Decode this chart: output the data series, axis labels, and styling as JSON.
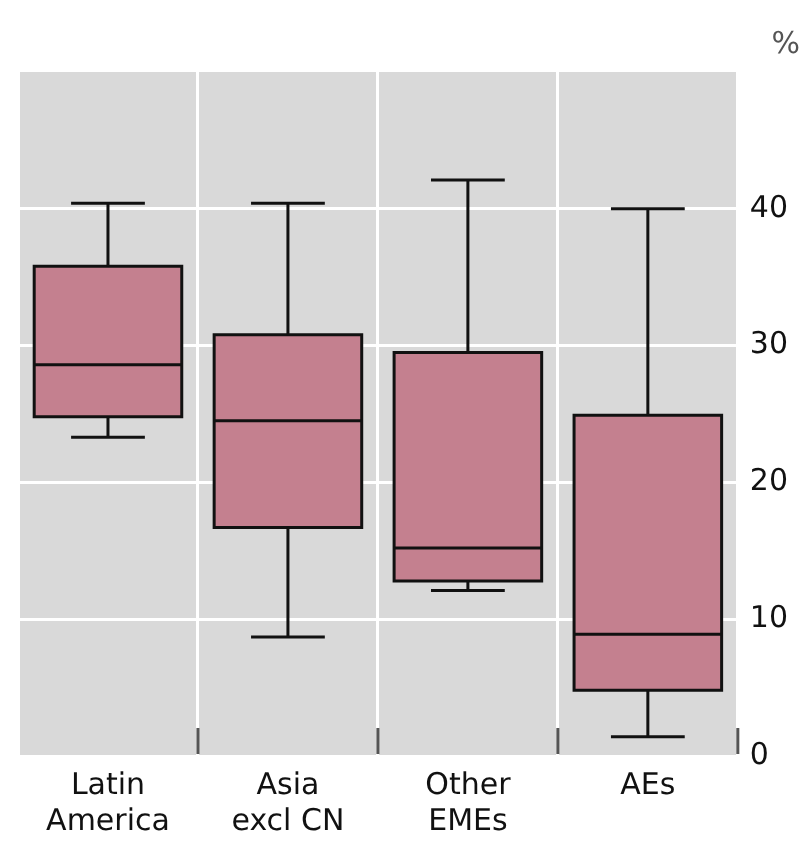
{
  "chart_data": {
    "type": "box",
    "ylabel": "%",
    "categories": [
      "Latin America",
      "Asia excl CN",
      "Other EMEs",
      "AEs"
    ],
    "boxes": [
      {
        "low": 23.3,
        "q1": 24.8,
        "median": 28.6,
        "q3": 35.8,
        "high": 40.4
      },
      {
        "low": 8.7,
        "q1": 16.7,
        "median": 24.5,
        "q3": 30.8,
        "high": 40.4
      },
      {
        "low": 12.1,
        "q1": 12.8,
        "median": 15.2,
        "q3": 29.5,
        "high": 42.1
      },
      {
        "low": 1.4,
        "q1": 4.8,
        "median": 8.9,
        "q3": 24.9,
        "high": 40.0
      }
    ],
    "color": "#c4808f",
    "ylim": [
      0,
      50
    ],
    "yticks": [
      0,
      10,
      20,
      30,
      40
    ],
    "grid": true
  }
}
